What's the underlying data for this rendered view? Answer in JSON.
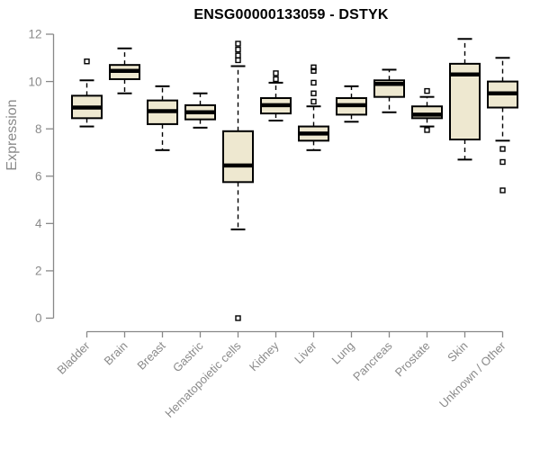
{
  "chart_data": {
    "type": "boxplot",
    "title": "ENSG00000133059 - DSTYK",
    "ylabel": "Expression",
    "xlabel": "",
    "ylim": [
      0,
      12
    ],
    "yticks": [
      0,
      2,
      4,
      6,
      8,
      10,
      12
    ],
    "grid": false,
    "legend": "none",
    "box_fill": "#EEE8D0",
    "box_border": "#000000",
    "median_color": "#000000",
    "axis_color": "#888888",
    "tick_label_color": "#8a8a8a",
    "title_color": "#000000",
    "categories": [
      "Bladder",
      "Brain",
      "Breast",
      "Gastric",
      "Hematopoietic cells",
      "Kidney",
      "Liver",
      "Lung",
      "Pancreas",
      "Prostate",
      "Skin",
      "Unknown / Other"
    ],
    "series": [
      {
        "name": "Bladder",
        "whisker_low": 8.1,
        "q1": 8.45,
        "median": 8.9,
        "q3": 9.4,
        "whisker_high": 10.05,
        "outliers": [
          10.85
        ]
      },
      {
        "name": "Brain",
        "whisker_low": 9.5,
        "q1": 10.1,
        "median": 10.45,
        "q3": 10.7,
        "whisker_high": 11.4,
        "outliers": []
      },
      {
        "name": "Breast",
        "whisker_low": 7.1,
        "q1": 8.2,
        "median": 8.75,
        "q3": 9.2,
        "whisker_high": 9.8,
        "outliers": []
      },
      {
        "name": "Gastric",
        "whisker_low": 8.05,
        "q1": 8.4,
        "median": 8.7,
        "q3": 9.0,
        "whisker_high": 9.5,
        "outliers": []
      },
      {
        "name": "Hematopoietic cells",
        "whisker_low": 3.75,
        "q1": 5.75,
        "median": 6.45,
        "q3": 7.9,
        "whisker_high": 10.65,
        "outliers": [
          11.6,
          11.35,
          11.1,
          10.9,
          0.0
        ]
      },
      {
        "name": "Kidney",
        "whisker_low": 8.35,
        "q1": 8.65,
        "median": 9.0,
        "q3": 9.3,
        "whisker_high": 9.95,
        "outliers": [
          10.35,
          10.1
        ]
      },
      {
        "name": "Liver",
        "whisker_low": 7.1,
        "q1": 7.5,
        "median": 7.8,
        "q3": 8.1,
        "whisker_high": 8.95,
        "outliers": [
          10.6,
          10.45,
          9.95,
          9.5,
          9.15
        ]
      },
      {
        "name": "Lung",
        "whisker_low": 8.3,
        "q1": 8.6,
        "median": 9.0,
        "q3": 9.3,
        "whisker_high": 9.8,
        "outliers": []
      },
      {
        "name": "Pancreas",
        "whisker_low": 8.7,
        "q1": 9.35,
        "median": 9.9,
        "q3": 10.05,
        "whisker_high": 10.5,
        "outliers": []
      },
      {
        "name": "Prostate",
        "whisker_low": 8.1,
        "q1": 8.45,
        "median": 8.6,
        "q3": 8.95,
        "whisker_high": 9.35,
        "outliers": [
          9.6,
          7.95
        ]
      },
      {
        "name": "Skin",
        "whisker_low": 6.7,
        "q1": 7.55,
        "median": 10.3,
        "q3": 10.75,
        "whisker_high": 11.8,
        "outliers": []
      },
      {
        "name": "Unknown / Other",
        "whisker_low": 7.5,
        "q1": 8.9,
        "median": 9.5,
        "q3": 10.0,
        "whisker_high": 11.0,
        "outliers": [
          7.15,
          6.6,
          5.4
        ]
      }
    ]
  }
}
